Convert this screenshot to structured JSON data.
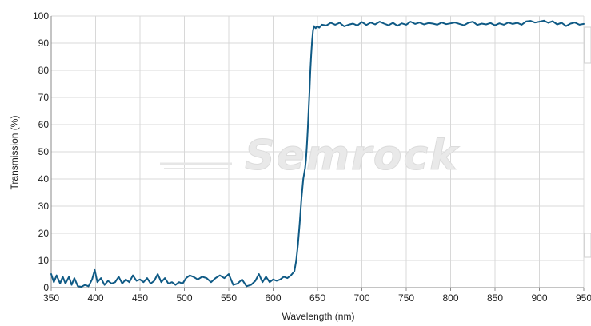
{
  "chart_data": {
    "type": "line",
    "xlabel": "Wavelength (nm)",
    "ylabel": "Transmission (%)",
    "xlim": [
      350,
      950
    ],
    "ylim": [
      0,
      100
    ],
    "x_ticks": [
      350,
      400,
      450,
      500,
      550,
      600,
      650,
      700,
      750,
      800,
      850,
      900,
      950
    ],
    "y_ticks": [
      0,
      10,
      20,
      30,
      40,
      50,
      60,
      70,
      80,
      90,
      100
    ],
    "grid": true,
    "colors": {
      "series": "#0f5a85",
      "grid": "#d8d8d8"
    },
    "watermark": "Semrock",
    "series": [
      {
        "x": [
          350,
          353,
          356,
          360,
          363,
          366,
          370,
          373,
          376,
          380,
          384,
          388,
          392,
          396,
          399,
          402,
          406,
          410,
          414,
          418,
          422,
          426,
          430,
          434,
          438,
          442,
          446,
          450,
          454,
          458,
          462,
          466,
          470,
          474,
          478,
          482,
          486,
          490,
          494,
          498,
          502,
          506,
          510,
          515,
          520,
          525,
          530,
          535,
          540,
          545,
          550,
          555,
          560,
          565,
          570,
          575,
          580,
          584,
          588,
          592,
          596,
          600,
          604,
          608,
          612,
          616,
          620,
          624,
          626,
          628,
          630,
          632,
          634,
          636,
          637,
          638,
          639,
          640,
          641,
          642,
          643,
          644,
          645,
          646,
          647,
          648,
          649,
          650,
          652,
          655,
          660,
          665,
          670,
          675,
          680,
          685,
          690,
          695,
          700,
          705,
          710,
          715,
          720,
          725,
          730,
          735,
          740,
          745,
          750,
          755,
          760,
          765,
          770,
          775,
          780,
          785,
          790,
          795,
          800,
          805,
          810,
          815,
          820,
          825,
          830,
          835,
          840,
          845,
          850,
          855,
          860,
          865,
          870,
          875,
          880,
          885,
          890,
          895,
          900,
          905,
          910,
          915,
          920,
          925,
          930,
          935,
          940,
          945,
          950
        ],
        "values": [
          5,
          2,
          4.5,
          1.5,
          4,
          1.5,
          4,
          1,
          3.5,
          0.5,
          0.3,
          1,
          0.5,
          3,
          6.5,
          2,
          3.5,
          1,
          2.5,
          1.5,
          2,
          4,
          1.5,
          3,
          2,
          4.5,
          2.5,
          3,
          2,
          3.5,
          1.5,
          2.5,
          5,
          2,
          3.5,
          1.5,
          2,
          1,
          2,
          1.5,
          3.5,
          4.5,
          4,
          3,
          4,
          3.5,
          2,
          3.5,
          4.5,
          3.5,
          5,
          1,
          1.5,
          3,
          0.5,
          1,
          2.5,
          5,
          2,
          4,
          2,
          3,
          2.5,
          3,
          4,
          3.5,
          4.5,
          6,
          10,
          16,
          24,
          33,
          40,
          44,
          47,
          52,
          58,
          65,
          72,
          80,
          86,
          91,
          94.5,
          96.3,
          95.8,
          95.5,
          96.1,
          96.2,
          95.7,
          96.8,
          96.5,
          97.5,
          96.8,
          97.5,
          96.2,
          96.8,
          97.2,
          96.5,
          97.8,
          96.7,
          97.6,
          96.9,
          97.9,
          97.2,
          96.6,
          97.5,
          96.4,
          97.3,
          96.8,
          97.9,
          97.1,
          97.6,
          96.9,
          97.4,
          97.2,
          96.8,
          97.6,
          97,
          97.3,
          97.6,
          97.1,
          96.6,
          97.5,
          97.9,
          96.7,
          97.2,
          96.9,
          97.4,
          96.6,
          97.3,
          96.8,
          97.6,
          97.1,
          97.5,
          96.8,
          98,
          98.2,
          97.6,
          97.9,
          98.3,
          97.5,
          98.1,
          96.9,
          97.5,
          96.3,
          97.2,
          97.6,
          96.8,
          97.1
        ]
      }
    ]
  }
}
